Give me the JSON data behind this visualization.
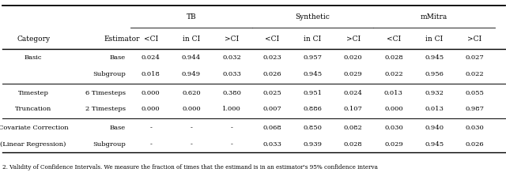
{
  "figsize": [
    6.4,
    2.23
  ],
  "dpi": 100,
  "caption": "2. Validity of Confidence Intervals. We measure the fraction of times that the estimand is in an estimator's 95% confidence interva",
  "col_headers_sub": [
    "Category",
    "Estimator",
    "<CI",
    "in CI",
    ">CI",
    "<CI",
    "in CI",
    ">CI",
    "<CI",
    "in CI",
    ">CI"
  ],
  "rows": [
    {
      "category": "Basic",
      "estimator": "Base",
      "vals": [
        "0.024",
        "0.944",
        "0.032",
        "0.023",
        "0.957",
        "0.020",
        "0.028",
        "0.945",
        "0.027"
      ]
    },
    {
      "category": "",
      "estimator": "Subgroup",
      "vals": [
        "0.018",
        "0.949",
        "0.033",
        "0.026",
        "0.945",
        "0.029",
        "0.022",
        "0.956",
        "0.022"
      ]
    },
    {
      "category": "Timestep",
      "estimator": "6 Timesteps",
      "vals": [
        "0.000",
        "0.620",
        "0.380",
        "0.025",
        "0.951",
        "0.024",
        "0.013",
        "0.932",
        "0.055"
      ]
    },
    {
      "category": "Truncation",
      "estimator": "2 Timesteps",
      "vals": [
        "0.000",
        "0.000",
        "1.000",
        "0.007",
        "0.886",
        "0.107",
        "0.000",
        "0.013",
        "0.987"
      ]
    },
    {
      "category": "Covariate Correction",
      "estimator": "Base",
      "vals": [
        "-",
        "-",
        "-",
        "0.068",
        "0.850",
        "0.082",
        "0.030",
        "0.940",
        "0.030"
      ]
    },
    {
      "category": "(Linear Regression)",
      "estimator": "Subgroup",
      "vals": [
        "-",
        "-",
        "-",
        "0.033",
        "0.939",
        "0.028",
        "0.029",
        "0.945",
        "0.026"
      ]
    }
  ],
  "font_size": 6.0,
  "header_font_size": 6.5,
  "caption_font_size": 5.2,
  "bg_color": "#ffffff",
  "text_color": "#000000",
  "line_color": "#000000"
}
